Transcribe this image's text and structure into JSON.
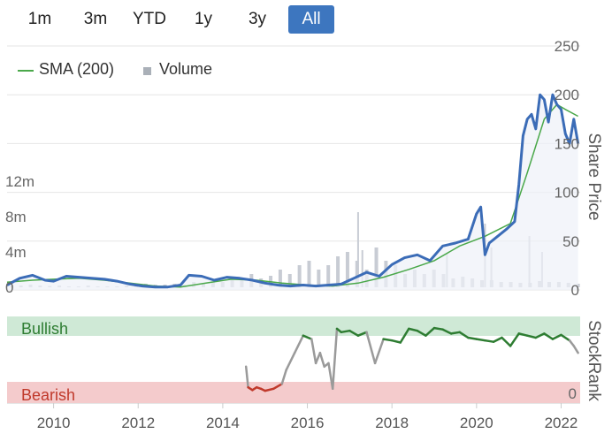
{
  "range_selector": {
    "buttons": [
      "1m",
      "3m",
      "YTD",
      "1y",
      "3y",
      "All"
    ],
    "active": "All"
  },
  "legend": {
    "sma_label": "SMA (200)",
    "volume_label": "Volume"
  },
  "colors": {
    "price": "#3b6cb7",
    "sma": "#4aa84a",
    "volume": "#c8ccd4",
    "area": "#eef1f8",
    "bullish_band": "#cfe9d6",
    "bearish_band": "#f4cbcc",
    "bullish_text": "#2e7d32",
    "bearish_text": "#c0392b",
    "rank_bull": "#2e7d32",
    "rank_mid": "#9a9a9a",
    "rank_bear": "#c0392b"
  },
  "chart_data": [
    {
      "type": "line",
      "panel": "price",
      "y_axis_right": {
        "label": "Share Price",
        "ticks": [
          0,
          50,
          100,
          150,
          200,
          250
        ],
        "ylim": [
          0,
          250
        ]
      },
      "y_axis_left": {
        "label": "",
        "ticks": [
          "0",
          "4m",
          "8m",
          "12m"
        ],
        "values": [
          0,
          4000000,
          8000000,
          12000000
        ]
      },
      "series": [
        {
          "name": "Price",
          "x": [
            2008.9,
            2009.2,
            2009.5,
            2009.8,
            2010.0,
            2010.3,
            2010.6,
            2010.9,
            2011.2,
            2011.5,
            2011.8,
            2012.1,
            2012.4,
            2012.7,
            2013.0,
            2013.2,
            2013.5,
            2013.8,
            2014.1,
            2014.4,
            2014.7,
            2015.0,
            2015.3,
            2015.6,
            2015.9,
            2016.2,
            2016.5,
            2016.8,
            2017.1,
            2017.4,
            2017.7,
            2018.0,
            2018.3,
            2018.6,
            2018.9,
            2019.2,
            2019.5,
            2019.8,
            2020.0,
            2020.1,
            2020.2,
            2020.3,
            2020.5,
            2020.7,
            2020.9,
            2021.0,
            2021.1,
            2021.2,
            2021.3,
            2021.4,
            2021.5,
            2021.6,
            2021.7,
            2021.8,
            2021.9,
            2022.0,
            2022.1,
            2022.2,
            2022.3,
            2022.4
          ],
          "y": [
            5,
            12,
            15,
            10,
            9,
            14,
            13,
            12,
            11,
            9,
            6,
            4,
            3,
            3,
            5,
            15,
            14,
            10,
            13,
            12,
            10,
            7,
            5,
            4,
            5,
            4,
            5,
            6,
            12,
            18,
            14,
            26,
            33,
            36,
            30,
            45,
            48,
            52,
            78,
            85,
            36,
            48,
            55,
            62,
            70,
            108,
            158,
            175,
            180,
            165,
            200,
            195,
            172,
            200,
            190,
            185,
            160,
            150,
            175,
            150
          ]
        },
        {
          "name": "SMA (200)",
          "x": [
            2008.9,
            2009.5,
            2010.0,
            2010.6,
            2011.2,
            2011.8,
            2012.4,
            2013.0,
            2013.6,
            2014.2,
            2014.8,
            2015.4,
            2016.0,
            2016.6,
            2017.2,
            2017.8,
            2018.4,
            2019.0,
            2019.6,
            2020.2,
            2020.8,
            2021.2,
            2021.6,
            2021.9,
            2022.1,
            2022.4
          ],
          "y": [
            8,
            10,
            11,
            12,
            10,
            7,
            4,
            3,
            7,
            11,
            10,
            7,
            5,
            4,
            7,
            13,
            21,
            30,
            45,
            55,
            68,
            120,
            175,
            190,
            185,
            178
          ]
        }
      ],
      "volume_m": [
        0.1,
        0.2,
        0.3,
        0.2,
        0.15,
        0.2,
        0.1,
        0.1,
        0.2,
        0.1,
        0.1,
        0.1,
        0.2,
        0.3,
        0.4,
        0.3,
        0.3,
        0.4,
        0.3,
        0.6,
        0.5,
        0.7,
        0.6,
        0.8,
        1.0,
        1.5,
        1.0,
        1.3,
        2.0,
        1.5,
        2.5,
        3.0,
        2.0,
        2.5,
        3.5,
        4.0,
        3.0,
        2.0,
        4.5,
        3.0,
        2.5,
        1.5,
        2.0,
        1.5,
        2.0,
        1.5,
        1.0,
        1.2,
        1.0,
        0.8,
        0.8,
        0.6,
        0.6,
        0.5,
        0.5,
        0.7,
        0.6,
        0.6,
        0.5,
        0.4
      ],
      "volume_spikes": [
        {
          "x": 2017.2,
          "v": 8.5
        },
        {
          "x": 2017.3,
          "v": 4.2
        },
        {
          "x": 2019.3,
          "v": 3.8
        },
        {
          "x": 2020.2,
          "v": 7.2
        },
        {
          "x": 2020.35,
          "v": 4.5
        },
        {
          "x": 2021.25,
          "v": 5.8
        },
        {
          "x": 2021.55,
          "v": 4.0
        }
      ]
    },
    {
      "type": "line",
      "panel": "stockrank",
      "y_axis_right": {
        "label": "StockRank",
        "ticks": [
          0
        ],
        "ylim": [
          0,
          100
        ]
      },
      "bands": {
        "bullish": "Bullish",
        "bearish": "Bearish"
      },
      "x_axis": {
        "ticks": [
          2010,
          2012,
          2014,
          2016,
          2018,
          2020,
          2022
        ]
      },
      "series": [
        {
          "name": "StockRank",
          "x": [
            2014.55,
            2014.6,
            2014.7,
            2014.8,
            2014.9,
            2015.0,
            2015.2,
            2015.4,
            2015.5,
            2015.7,
            2015.9,
            2016.1,
            2016.2,
            2016.3,
            2016.4,
            2016.5,
            2016.6,
            2016.7,
            2016.8,
            2017.0,
            2017.2,
            2017.4,
            2017.6,
            2017.8,
            2018.0,
            2018.2,
            2018.4,
            2018.6,
            2018.8,
            2019.0,
            2019.2,
            2019.4,
            2019.6,
            2019.8,
            2020.0,
            2020.2,
            2020.4,
            2020.6,
            2020.8,
            2021.0,
            2021.2,
            2021.4,
            2021.6,
            2021.8,
            2022.0,
            2022.2,
            2022.3,
            2022.4
          ],
          "y": [
            40,
            10,
            6,
            10,
            8,
            5,
            8,
            15,
            35,
            60,
            85,
            80,
            45,
            60,
            40,
            45,
            8,
            95,
            90,
            92,
            85,
            90,
            45,
            80,
            78,
            75,
            95,
            92,
            85,
            96,
            94,
            88,
            90,
            82,
            80,
            78,
            76,
            82,
            70,
            88,
            85,
            82,
            88,
            80,
            86,
            78,
            70,
            60
          ]
        }
      ]
    }
  ]
}
